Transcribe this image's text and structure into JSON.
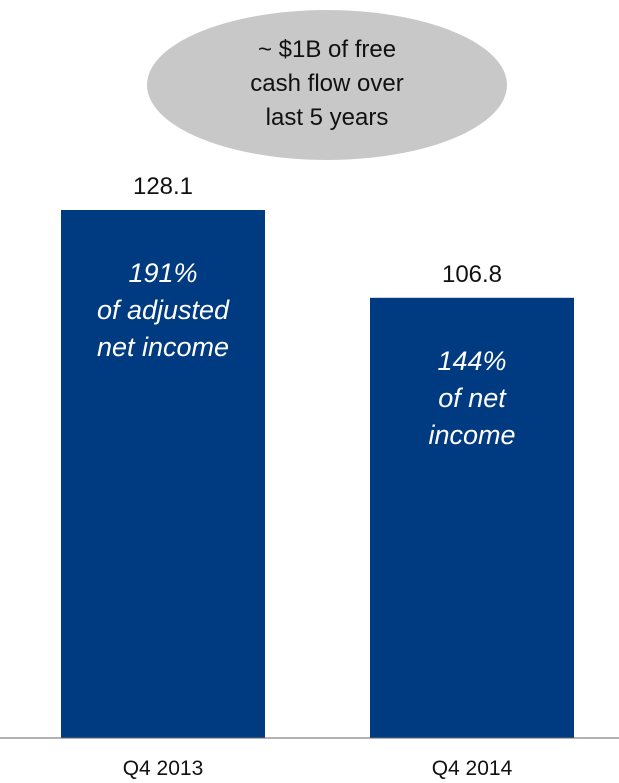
{
  "callout": {
    "lines": [
      "~ $1B of free",
      "cash flow over",
      "last 5 years"
    ]
  },
  "chart_data": {
    "type": "bar",
    "categories": [
      "Q4 2013",
      "Q4 2014"
    ],
    "values": [
      128.1,
      106.8
    ],
    "value_labels": [
      "128.1",
      "106.8"
    ],
    "bar_annotations": [
      [
        "191%",
        "of adjusted",
        "net income"
      ],
      [
        "144%",
        "of net",
        "income"
      ]
    ],
    "ylim": [
      0,
      128.1
    ],
    "grid": false,
    "colors": {
      "bar": "#003a80",
      "callout_fill": "#c8c8c8",
      "axis": "#666666"
    }
  }
}
